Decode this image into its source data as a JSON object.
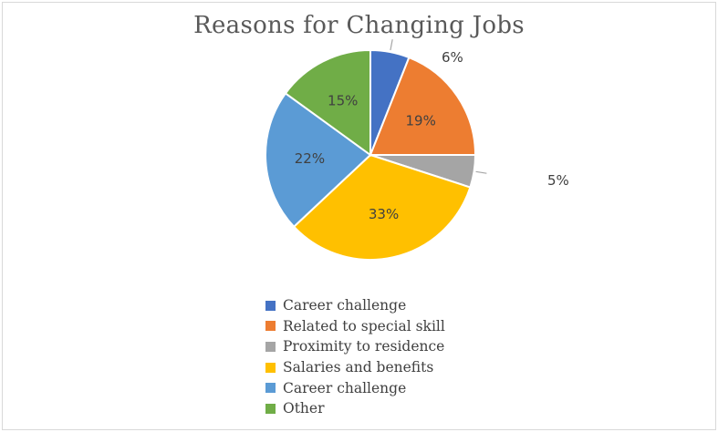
{
  "chart_data": {
    "type": "pie",
    "title": "Reasons for Changing Jobs",
    "slices": [
      {
        "label": "Career challenge",
        "value": 6,
        "display": "6%",
        "color": "#4472C4"
      },
      {
        "label": "Related to special skill",
        "value": 19,
        "display": "19%",
        "color": "#ED7D31"
      },
      {
        "label": "Proximity to residence",
        "value": 5,
        "display": "5%",
        "color": "#A5A5A5"
      },
      {
        "label": "Salaries and benefits",
        "value": 33,
        "display": "33%",
        "color": "#FFC000"
      },
      {
        "label": "Career challenge",
        "value": 22,
        "display": "22%",
        "color": "#5B9BD5"
      },
      {
        "label": "Other",
        "value": 15,
        "display": "15%",
        "color": "#70AD47"
      }
    ],
    "legend_position": "bottom"
  }
}
